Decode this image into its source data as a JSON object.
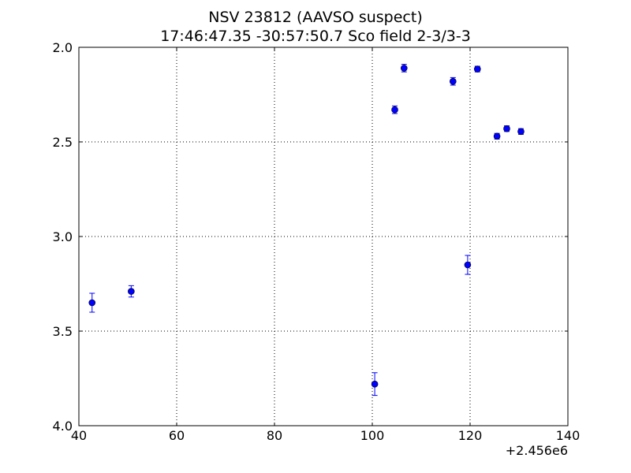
{
  "chart_data": {
    "type": "scatter",
    "title": "NSV 23812  (AAVSO suspect)",
    "subtitle": "17:46:47.35 -30:57:50.7 Sco field 2-3/3-3",
    "xlabel": "",
    "ylabel": "",
    "x_offset_label": "+2.456e6",
    "xlim": [
      40,
      140
    ],
    "ylim": [
      4.0,
      2.0
    ],
    "y_inverted": true,
    "grid": true,
    "x_ticks": [
      40,
      60,
      80,
      100,
      120,
      140
    ],
    "x_tick_labels": [
      "40",
      "60",
      "80",
      "100",
      "120",
      "140"
    ],
    "y_ticks": [
      2.0,
      2.5,
      3.0,
      3.5,
      4.0
    ],
    "y_tick_labels": [
      "2.0",
      "2.5",
      "3.0",
      "3.5",
      "4.0"
    ],
    "marker_color": "#0000ff",
    "points": [
      {
        "x": 42.7,
        "y": 3.35,
        "err": 0.05
      },
      {
        "x": 50.7,
        "y": 3.29,
        "err": 0.03
      },
      {
        "x": 100.5,
        "y": 3.78,
        "err": 0.06
      },
      {
        "x": 104.6,
        "y": 2.33,
        "err": 0.02
      },
      {
        "x": 106.5,
        "y": 2.11,
        "err": 0.02
      },
      {
        "x": 116.5,
        "y": 2.18,
        "err": 0.02
      },
      {
        "x": 119.5,
        "y": 3.15,
        "err": 0.05
      },
      {
        "x": 121.5,
        "y": 2.115,
        "err": 0.015
      },
      {
        "x": 125.5,
        "y": 2.47,
        "err": 0.015
      },
      {
        "x": 127.5,
        "y": 2.43,
        "err": 0.015
      },
      {
        "x": 130.4,
        "y": 2.445,
        "err": 0.015
      }
    ]
  }
}
